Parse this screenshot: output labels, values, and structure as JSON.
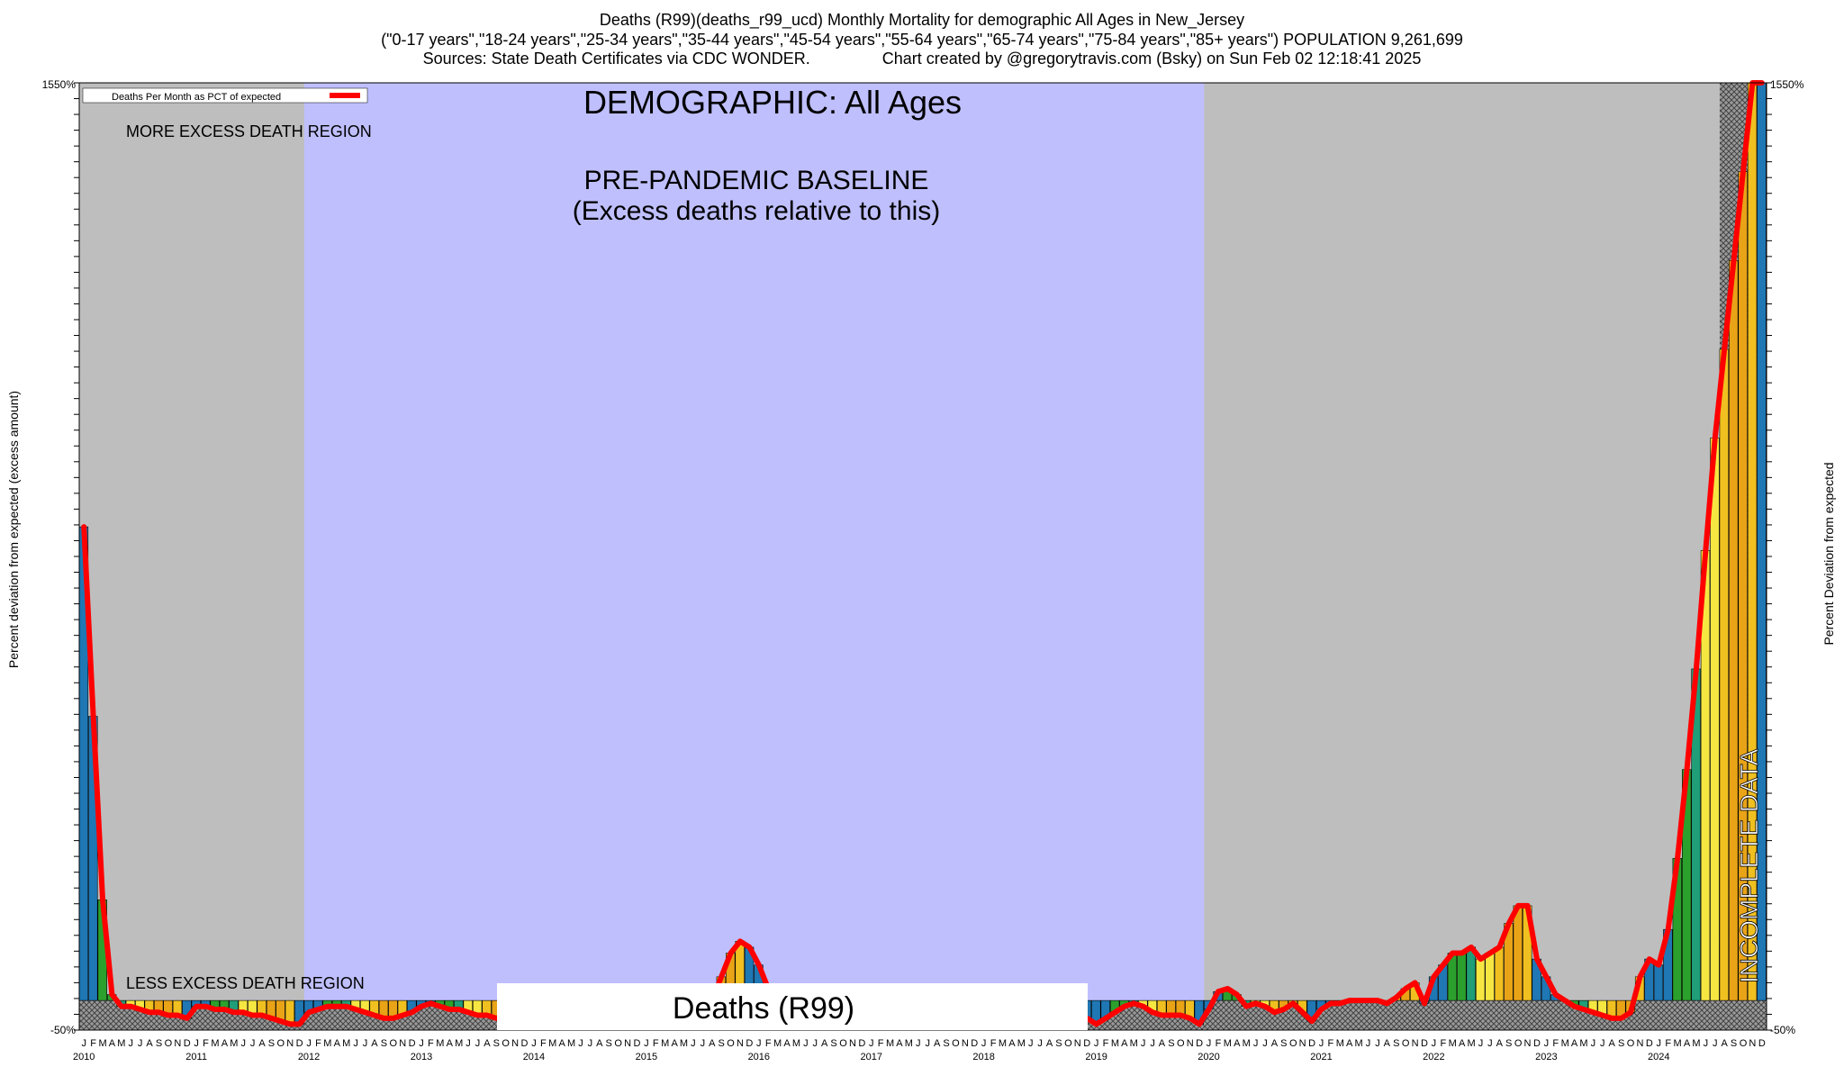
{
  "chart_data": {
    "type": "bar",
    "title_lines": [
      "Deaths (R99)(deaths_r99_ucd) Monthly Mortality for demographic All Ages in New_Jersey",
      "(\"0-17 years\",\"18-24 years\",\"25-34 years\",\"35-44 years\",\"45-54 years\",\"55-64 years\",\"65-74 years\",\"75-84 years\",\"85+ years\") POPULATION 9,261,699",
      "Sources: State Death Certificates via CDC WONDER.                Chart created by @gregorytravis.com (Bsky) on Sun Feb 02 12:18:41 2025"
    ],
    "ylabel_left": "Percent deviation from expected (excess amount)",
    "ylabel_right": "Percent Deviation from expected",
    "legend_label": "Deaths Per Month as PCT of expected",
    "legend_position": "top-left",
    "demographic_label": "DEMOGRAPHIC: All Ages",
    "baseline_label_1": "PRE-PANDEMIC BASELINE",
    "baseline_label_2": "(Excess deaths relative to this)",
    "more_excess_label": "MORE EXCESS DEATH REGION",
    "less_excess_label": "LESS EXCESS DEATH REGION",
    "cause_label": "Deaths (R99)",
    "incomplete_label": "INCOMPLETE DATA",
    "ylim": [
      -50,
      1550
    ],
    "y_tick_bottom": "-50%",
    "y_tick_top": "1550%",
    "years": [
      "2010",
      "2011",
      "2012",
      "2013",
      "2014",
      "2015",
      "2016",
      "2017",
      "2018",
      "2019",
      "2020",
      "2021",
      "2022",
      "2023",
      "2024"
    ],
    "month_letters": [
      "J",
      "F",
      "M",
      "A",
      "M",
      "J",
      "J",
      "A",
      "S",
      "O",
      "N",
      "D"
    ],
    "series": [
      {
        "values": [
          800,
          480,
          170,
          10,
          -10,
          -10,
          -15,
          -20,
          -20,
          -25,
          -25,
          -30,
          -10,
          -10,
          -15,
          -15,
          -20,
          -20,
          -25,
          -25,
          -30,
          -35,
          -40,
          -40,
          -20,
          -15,
          -10,
          -10,
          -10,
          -15,
          -20,
          -25,
          -30,
          -30,
          -25,
          -20,
          -10,
          -5,
          -10,
          -15,
          -15,
          -20,
          -25,
          -25,
          -30,
          -30,
          -20,
          -15,
          -20,
          -25,
          -25,
          -30,
          -30,
          -30,
          -25,
          -25,
          -25,
          -25,
          -25,
          -25,
          -20,
          -25,
          -25,
          -25,
          -20,
          -15,
          -10,
          0,
          40,
          80,
          100,
          90,
          60,
          20,
          -10,
          -20,
          -20,
          -25,
          -25,
          -25,
          -30,
          -30,
          -30,
          -30,
          -30,
          -30,
          -30,
          -30,
          -30,
          -30,
          -30,
          -30,
          -30,
          -30,
          -30,
          -30,
          -30,
          -30,
          -30,
          -30,
          -30,
          -30,
          -30,
          -30,
          -30,
          -30,
          -30,
          -30,
          -40,
          -30,
          -20,
          -10,
          -5,
          -10,
          -20,
          -25,
          -25,
          -25,
          -30,
          -40,
          -15,
          15,
          20,
          10,
          -10,
          -5,
          -10,
          -20,
          -15,
          -5,
          -20,
          -35,
          -15,
          -5,
          -5,
          0,
          0,
          0,
          0,
          -5,
          5,
          20,
          30,
          -5,
          40,
          60,
          80,
          80,
          90,
          70,
          80,
          90,
          130,
          160,
          160,
          70,
          40,
          10,
          0,
          -10,
          -15,
          -20,
          -25,
          -30,
          -30,
          -20,
          40,
          70,
          60,
          120,
          240,
          390,
          560,
          760,
          950,
          1100,
          1250,
          1400,
          1550,
          1550
        ]
      }
    ]
  }
}
